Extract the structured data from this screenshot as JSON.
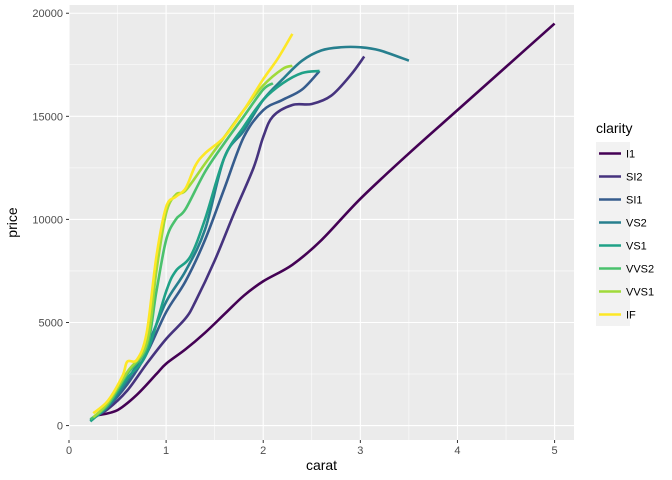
{
  "chart_data": {
    "type": "line",
    "title": "",
    "xlabel": "carat",
    "ylabel": "price",
    "xlim": [
      0,
      5.2
    ],
    "ylim": [
      -700,
      20400
    ],
    "x_ticks": [
      0,
      1,
      2,
      3,
      4,
      5
    ],
    "y_ticks": [
      0,
      5000,
      10000,
      15000,
      20000
    ],
    "grid": true,
    "legend": {
      "title": "clarity",
      "placement": "right"
    },
    "series": [
      {
        "name": "I1",
        "color": "#440154",
        "points": [
          [
            0.3,
            500
          ],
          [
            0.5,
            750
          ],
          [
            0.7,
            1500
          ],
          [
            0.9,
            2500
          ],
          [
            1.0,
            3000
          ],
          [
            1.2,
            3700
          ],
          [
            1.4,
            4500
          ],
          [
            1.6,
            5400
          ],
          [
            1.8,
            6300
          ],
          [
            2.0,
            7000
          ],
          [
            2.3,
            7800
          ],
          [
            2.6,
            9000
          ],
          [
            3.0,
            11000
          ],
          [
            3.5,
            13200
          ],
          [
            4.0,
            15300
          ],
          [
            4.5,
            17400
          ],
          [
            5.0,
            19500
          ]
        ]
      },
      {
        "name": "SI2",
        "color": "#46337E",
        "points": [
          [
            0.25,
            400
          ],
          [
            0.4,
            800
          ],
          [
            0.6,
            1700
          ],
          [
            0.8,
            3000
          ],
          [
            1.0,
            4200
          ],
          [
            1.2,
            5200
          ],
          [
            1.3,
            6000
          ],
          [
            1.5,
            8000
          ],
          [
            1.7,
            10300
          ],
          [
            1.9,
            12500
          ],
          [
            2.0,
            14000
          ],
          [
            2.1,
            15000
          ],
          [
            2.3,
            15550
          ],
          [
            2.5,
            15600
          ],
          [
            2.7,
            16000
          ],
          [
            2.9,
            17000
          ],
          [
            3.04,
            17900
          ]
        ]
      },
      {
        "name": "SI1",
        "color": "#365C8D",
        "points": [
          [
            0.25,
            350
          ],
          [
            0.4,
            900
          ],
          [
            0.6,
            2000
          ],
          [
            0.8,
            3500
          ],
          [
            1.0,
            5500
          ],
          [
            1.2,
            7000
          ],
          [
            1.4,
            9000
          ],
          [
            1.6,
            11500
          ],
          [
            1.8,
            14000
          ],
          [
            2.0,
            15300
          ],
          [
            2.2,
            15800
          ],
          [
            2.4,
            16300
          ],
          [
            2.58,
            17200
          ]
        ]
      },
      {
        "name": "VS2",
        "color": "#277F8E",
        "points": [
          [
            0.22,
            250
          ],
          [
            0.4,
            900
          ],
          [
            0.6,
            2200
          ],
          [
            0.8,
            3800
          ],
          [
            1.0,
            6000
          ],
          [
            1.2,
            7500
          ],
          [
            1.4,
            9500
          ],
          [
            1.6,
            13000
          ],
          [
            1.8,
            14300
          ],
          [
            2.0,
            15800
          ],
          [
            2.2,
            16800
          ],
          [
            2.4,
            17700
          ],
          [
            2.6,
            18200
          ],
          [
            2.8,
            18350
          ],
          [
            3.0,
            18350
          ],
          [
            3.2,
            18200
          ],
          [
            3.5,
            17700
          ]
        ]
      },
      {
        "name": "VS1",
        "color": "#1FA187",
        "points": [
          [
            0.22,
            200
          ],
          [
            0.4,
            1000
          ],
          [
            0.6,
            2300
          ],
          [
            0.8,
            3500
          ],
          [
            1.0,
            6500
          ],
          [
            1.1,
            7500
          ],
          [
            1.25,
            8200
          ],
          [
            1.4,
            10000
          ],
          [
            1.6,
            13000
          ],
          [
            1.8,
            14500
          ],
          [
            2.0,
            15800
          ],
          [
            2.2,
            16600
          ],
          [
            2.4,
            17100
          ],
          [
            2.58,
            17200
          ]
        ]
      },
      {
        "name": "VVS2",
        "color": "#4AC16D",
        "points": [
          [
            0.22,
            300
          ],
          [
            0.4,
            1000
          ],
          [
            0.6,
            2500
          ],
          [
            0.8,
            3800
          ],
          [
            0.9,
            6500
          ],
          [
            1.0,
            9000
          ],
          [
            1.1,
            10000
          ],
          [
            1.2,
            10500
          ],
          [
            1.4,
            12300
          ],
          [
            1.6,
            13700
          ],
          [
            1.8,
            15000
          ],
          [
            2.0,
            16300
          ],
          [
            2.1,
            16600
          ]
        ]
      },
      {
        "name": "VVS1",
        "color": "#A0DA39",
        "points": [
          [
            0.25,
            400
          ],
          [
            0.4,
            1100
          ],
          [
            0.6,
            2600
          ],
          [
            0.8,
            4000
          ],
          [
            0.9,
            7500
          ],
          [
            1.0,
            10300
          ],
          [
            1.1,
            11200
          ],
          [
            1.2,
            11400
          ],
          [
            1.4,
            12700
          ],
          [
            1.6,
            14000
          ],
          [
            1.8,
            15300
          ],
          [
            2.0,
            16500
          ],
          [
            2.2,
            17300
          ],
          [
            2.3,
            17450
          ]
        ]
      },
      {
        "name": "IF",
        "color": "#FDE725",
        "points": [
          [
            0.25,
            600
          ],
          [
            0.4,
            1200
          ],
          [
            0.55,
            2400
          ],
          [
            0.6,
            3100
          ],
          [
            0.7,
            3200
          ],
          [
            0.8,
            4500
          ],
          [
            0.9,
            8200
          ],
          [
            1.0,
            10600
          ],
          [
            1.1,
            11100
          ],
          [
            1.2,
            11500
          ],
          [
            1.3,
            12600
          ],
          [
            1.4,
            13200
          ],
          [
            1.6,
            14000
          ],
          [
            1.8,
            15300
          ],
          [
            2.0,
            16800
          ],
          [
            2.15,
            17800
          ],
          [
            2.3,
            19000
          ]
        ]
      }
    ]
  }
}
